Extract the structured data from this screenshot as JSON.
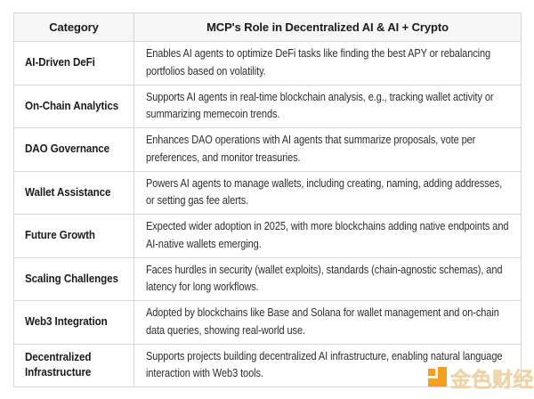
{
  "table": {
    "headers": [
      "Category",
      "MCP's Role in Decentralized AI & AI + Crypto"
    ],
    "rows": [
      {
        "category": "AI-Driven DeFi",
        "description": "Enables AI agents to optimize DeFi tasks like finding the best APY or rebalancing portfolios based on volatility."
      },
      {
        "category": "On-Chain Analytics",
        "description": "Supports AI agents in real-time blockchain analysis, e.g., tracking wallet activity or summarizing memecoin trends."
      },
      {
        "category": "DAO Governance",
        "description": "Enhances DAO operations with AI agents that summarize proposals, vote per preferences, and monitor treasuries."
      },
      {
        "category": "Wallet Assistance",
        "description": "Powers AI agents to manage wallets, including creating, naming, adding addresses, or setting gas fee alerts."
      },
      {
        "category": "Future Growth",
        "description": "Expected wider adoption in 2025, with more blockchains adding native endpoints and AI-native wallets emerging."
      },
      {
        "category": "Scaling Challenges",
        "description": "Faces hurdles in security (wallet exploits), standards (chain-agnostic schemas), and latency for long workflows."
      },
      {
        "category": "Web3 Integration",
        "description": "Adopted by blockchains like Base and Solana for wallet management and on-chain data queries, showing real-world use."
      },
      {
        "category": "Decentralized Infrastructure",
        "description": "Supports projects building decentralized AI infrastructure, enabling natural language interaction with Web3 tools."
      }
    ]
  },
  "watermark": {
    "brand": "金色财经",
    "logo_color": "#f2a01e",
    "text_color": "#eccf9d"
  },
  "colors": {
    "header_background": "#f6f6f6",
    "border": "#d7d7d7",
    "heading_text": "#1b1b1b",
    "body_text": "#2e2e2e",
    "page_background": "#ffffff"
  }
}
